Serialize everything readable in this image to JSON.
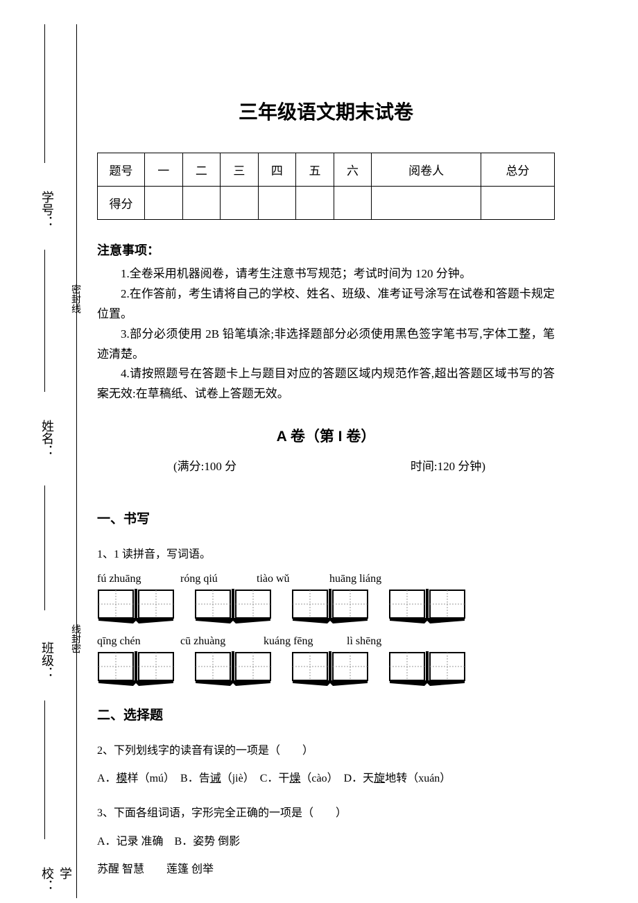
{
  "title": "三年级语文期末试卷",
  "binding": {
    "school": "学校：",
    "class": "班级：",
    "name": "姓名：",
    "id": "学号：",
    "seal1": "密封线",
    "seal2": "线封密"
  },
  "table": {
    "row1_header": "题号",
    "cols": [
      "一",
      "二",
      "三",
      "四",
      "五",
      "六",
      "阅卷人",
      "总分"
    ],
    "row2_header": "得分"
  },
  "notice": {
    "header": "注意事项：",
    "items": [
      "1.全卷采用机器阅卷，请考生注意书写规范；考试时间为 120 分钟。",
      "2.在作答前，考生请将自己的学校、姓名、班级、准考证号涂写在试卷和答题卡规定位置。",
      "3.部分必须使用 2B 铅笔填涂;非选择题部分必须使用黑色签字笔书写,字体工整，笔迹清楚。",
      "4.请按照题号在答题卡上与题目对应的答题区域内规范作答,超出答题区域书写的答案无效:在草稿纸、试卷上答题无效。"
    ]
  },
  "sectionA": "A 卷（第 I 卷）",
  "meta": {
    "full": "(满分:100 分",
    "time": "时间:120 分钟)"
  },
  "q1": {
    "heading": "一、书写",
    "prompt": "1、1 读拼音，写词语。",
    "row1": [
      "fú zhuāng",
      "róng qiú",
      "tiào wǔ",
      "huāng liáng"
    ],
    "row2": [
      "qīng chén",
      "cū zhuàng",
      "kuáng fēng",
      "lì shēng"
    ]
  },
  "q2": {
    "heading": "二、选择题",
    "q2text_pre": "2、下列划线字的读音有误的一项是（　　）",
    "q2a_pre": "A．",
    "q2a_u": "模",
    "q2a_post": "样（mú）　B．告",
    "q2b_u": "诫",
    "q2b_post": "（jiè）　C．干",
    "q2c_u": "燥",
    "q2c_post": "（cào）　D．天",
    "q2d_u": "旋",
    "q2d_post": "地转（xuán）",
    "q3text": "3、下面各组词语，字形完全正确的一项是（　　）",
    "q3a": "A．记录  准确　B．姿势  倒影",
    "q3b": "苏醒  智慧　　莲篷  创举"
  }
}
